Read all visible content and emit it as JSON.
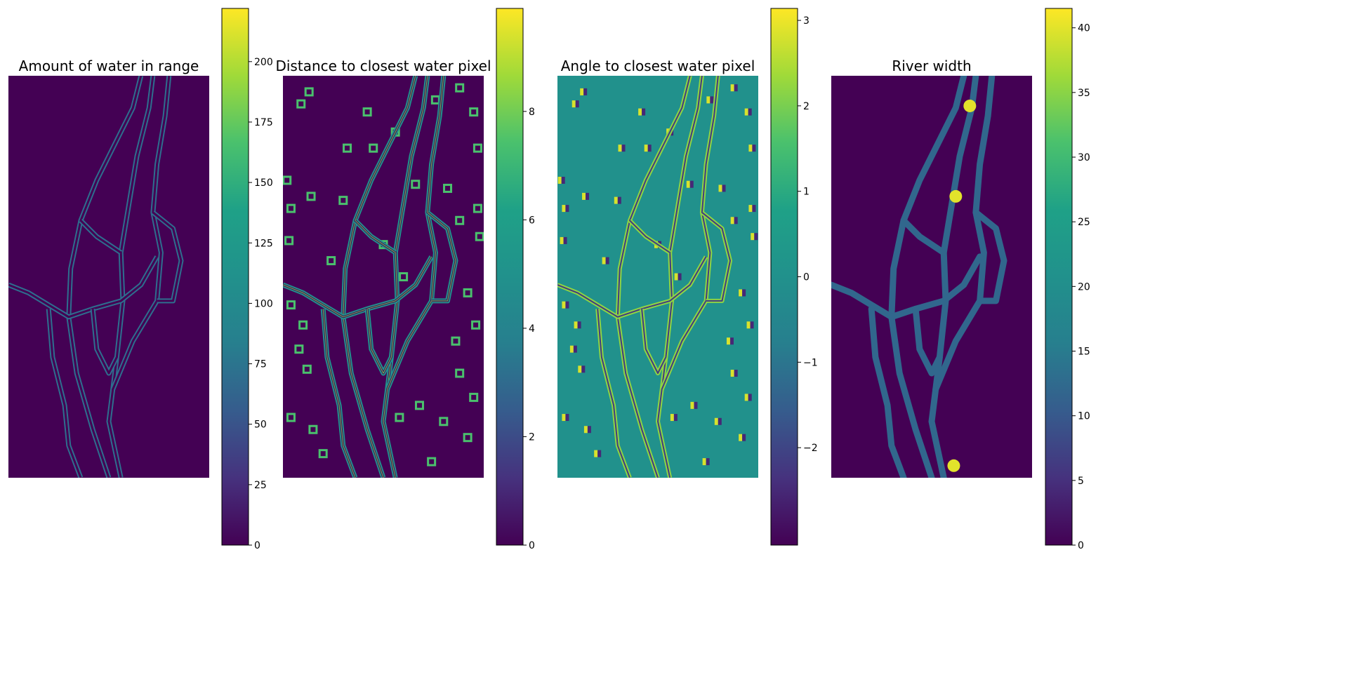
{
  "chart_data": [
    {
      "type": "heatmap",
      "title": "Amount of water in range",
      "colormap": "viridis",
      "colorbar": {
        "vmin": 0,
        "vmax": 222,
        "ticks": [
          0,
          25,
          50,
          75,
          100,
          125,
          150,
          175,
          200
        ]
      },
      "background_value": 0,
      "channel_value": 70,
      "channel_style": "outline"
    },
    {
      "type": "heatmap",
      "title": "Distance to closest water pixel",
      "colormap": "viridis",
      "colorbar": {
        "vmin": 0,
        "vmax": 9.9,
        "ticks": [
          0,
          2,
          4,
          6,
          8
        ]
      },
      "background_value": 0,
      "channel_value": 5,
      "channel_style": "outline"
    },
    {
      "type": "heatmap",
      "title": "Angle to closest water pixel",
      "colormap": "viridis",
      "colorbar": {
        "vmin": -3.14,
        "vmax": 3.14,
        "ticks": [
          -2,
          -1,
          0,
          1,
          2,
          3
        ]
      },
      "background_value": 0,
      "channel_value": 2,
      "channel_style": "outline"
    },
    {
      "type": "heatmap",
      "title": "River width",
      "colormap": "viridis",
      "colorbar": {
        "vmin": 0,
        "vmax": 41.5,
        "ticks": [
          0,
          5,
          10,
          15,
          20,
          25,
          30,
          35,
          40
        ]
      },
      "background_value": 0,
      "channel_value": 12,
      "channel_style": "filled",
      "max_value": 40
    }
  ]
}
